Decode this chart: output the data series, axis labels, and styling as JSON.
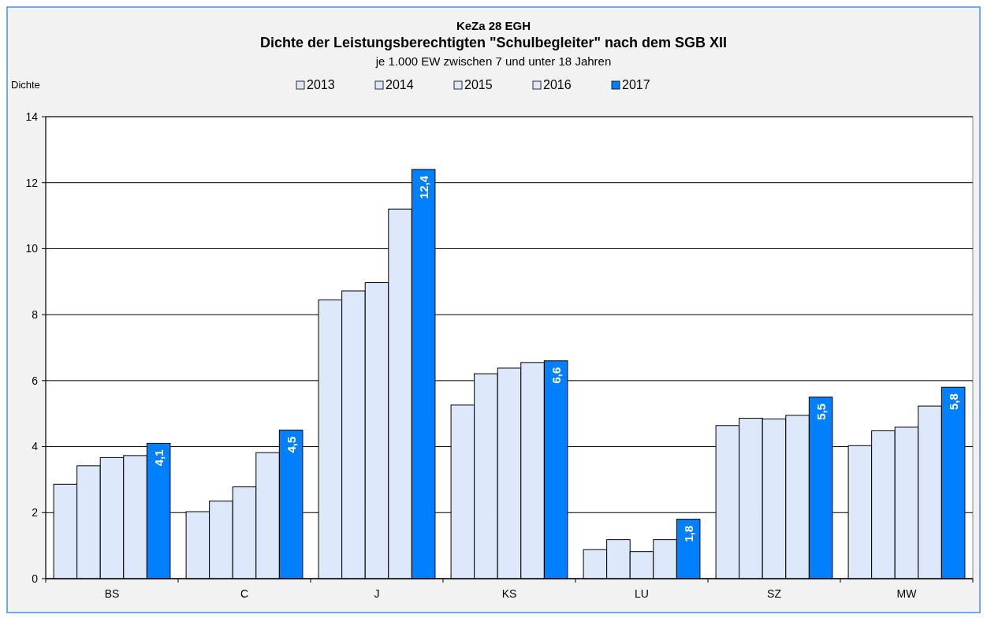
{
  "chart_data": {
    "type": "bar",
    "title": "KeZa 28 EGH",
    "subtitle": "Dichte der Leistungsberechtigten \"Schulbegleiter\" nach dem SGB XII",
    "annotations": [
      "je 1.000 EW zwischen 7 und unter 18 Jahren"
    ],
    "ylabel": "Dichte",
    "categories": [
      "BS",
      "C",
      "J",
      "KS",
      "LU",
      "SZ",
      "MW"
    ],
    "series": [
      {
        "name": "2013",
        "color": "#dde8fb",
        "values": [
          2.86,
          2.03,
          8.45,
          5.26,
          0.88,
          4.64,
          4.03
        ]
      },
      {
        "name": "2014",
        "color": "#dde8fb",
        "values": [
          3.42,
          2.35,
          8.72,
          6.21,
          1.18,
          4.86,
          4.48
        ]
      },
      {
        "name": "2015",
        "color": "#dde8fb",
        "values": [
          3.67,
          2.78,
          8.97,
          6.38,
          0.82,
          4.84,
          4.59
        ]
      },
      {
        "name": "2016",
        "color": "#dde8fb",
        "values": [
          3.73,
          3.82,
          11.2,
          6.55,
          1.18,
          4.95,
          5.23
        ]
      },
      {
        "name": "2017",
        "color": "#0080ff",
        "values": [
          4.1,
          4.5,
          12.4,
          6.6,
          1.8,
          5.5,
          5.8
        ],
        "value_labels": [
          "4,1",
          "4,5",
          "12,4",
          "6,6",
          "1,8",
          "5,5",
          "5,8"
        ]
      }
    ],
    "ylim": [
      0,
      14
    ],
    "yticks": [
      0,
      2,
      4,
      6,
      8,
      10,
      12,
      14
    ],
    "grid": "y",
    "legend": "top"
  }
}
